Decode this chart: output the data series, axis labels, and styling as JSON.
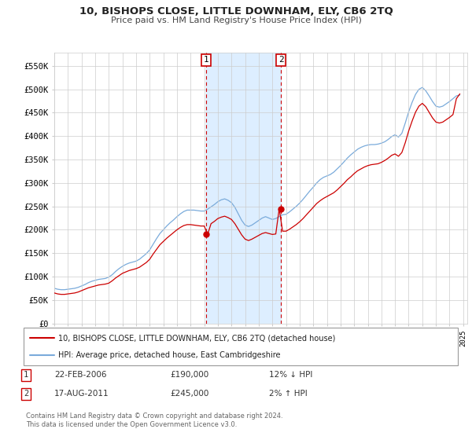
{
  "title": "10, BISHOPS CLOSE, LITTLE DOWNHAM, ELY, CB6 2TQ",
  "subtitle": "Price paid vs. HM Land Registry's House Price Index (HPI)",
  "ylabel_ticks": [
    "£0",
    "£50K",
    "£100K",
    "£150K",
    "£200K",
    "£250K",
    "£300K",
    "£350K",
    "£400K",
    "£450K",
    "£500K",
    "£550K"
  ],
  "ytick_values": [
    0,
    50000,
    100000,
    150000,
    200000,
    250000,
    300000,
    350000,
    400000,
    450000,
    500000,
    550000
  ],
  "ylim": [
    0,
    578000
  ],
  "xlim_start": 1995.0,
  "xlim_end": 2025.3,
  "background_color": "#ffffff",
  "plot_bg_color": "#ffffff",
  "grid_color": "#cccccc",
  "sale1_x": 2006.14,
  "sale1_y": 190000,
  "sale1_label": "1",
  "sale1_date": "22-FEB-2006",
  "sale1_price": "£190,000",
  "sale1_hpi": "12% ↓ HPI",
  "sale2_x": 2011.63,
  "sale2_y": 245000,
  "sale2_label": "2",
  "sale2_date": "17-AUG-2011",
  "sale2_price": "£245,000",
  "sale2_hpi": "2% ↑ HPI",
  "shaded_region_color": "#ddeeff",
  "vline_color": "#cc0000",
  "vline_style": "--",
  "legend_line1": "10, BISHOPS CLOSE, LITTLE DOWNHAM, ELY, CB6 2TQ (detached house)",
  "legend_line2": "HPI: Average price, detached house, East Cambridgeshire",
  "footer": "Contains HM Land Registry data © Crown copyright and database right 2024.\nThis data is licensed under the Open Government Licence v3.0.",
  "hpi_color": "#7aabdb",
  "price_color": "#cc0000",
  "hpi_data_years": [
    1995.0,
    1995.25,
    1995.5,
    1995.75,
    1996.0,
    1996.25,
    1996.5,
    1996.75,
    1997.0,
    1997.25,
    1997.5,
    1997.75,
    1998.0,
    1998.25,
    1998.5,
    1998.75,
    1999.0,
    1999.25,
    1999.5,
    1999.75,
    2000.0,
    2000.25,
    2000.5,
    2000.75,
    2001.0,
    2001.25,
    2001.5,
    2001.75,
    2002.0,
    2002.25,
    2002.5,
    2002.75,
    2003.0,
    2003.25,
    2003.5,
    2003.75,
    2004.0,
    2004.25,
    2004.5,
    2004.75,
    2005.0,
    2005.25,
    2005.5,
    2005.75,
    2006.0,
    2006.25,
    2006.5,
    2006.75,
    2007.0,
    2007.25,
    2007.5,
    2007.75,
    2008.0,
    2008.25,
    2008.5,
    2008.75,
    2009.0,
    2009.25,
    2009.5,
    2009.75,
    2010.0,
    2010.25,
    2010.5,
    2010.75,
    2011.0,
    2011.25,
    2011.5,
    2011.75,
    2012.0,
    2012.25,
    2012.5,
    2012.75,
    2013.0,
    2013.25,
    2013.5,
    2013.75,
    2014.0,
    2014.25,
    2014.5,
    2014.75,
    2015.0,
    2015.25,
    2015.5,
    2015.75,
    2016.0,
    2016.25,
    2016.5,
    2016.75,
    2017.0,
    2017.25,
    2017.5,
    2017.75,
    2018.0,
    2018.25,
    2018.5,
    2018.75,
    2019.0,
    2019.25,
    2019.5,
    2019.75,
    2020.0,
    2020.25,
    2020.5,
    2020.75,
    2021.0,
    2021.25,
    2021.5,
    2021.75,
    2022.0,
    2022.25,
    2022.5,
    2022.75,
    2023.0,
    2023.25,
    2023.5,
    2023.75,
    2024.0,
    2024.25,
    2024.5,
    2024.75
  ],
  "hpi_data_values": [
    75000,
    73000,
    72000,
    72000,
    73000,
    74000,
    75000,
    77000,
    80000,
    83000,
    87000,
    90000,
    92000,
    94000,
    95000,
    96000,
    99000,
    104000,
    111000,
    117000,
    122000,
    126000,
    129000,
    131000,
    133000,
    137000,
    143000,
    149000,
    157000,
    169000,
    181000,
    192000,
    200000,
    208000,
    215000,
    221000,
    228000,
    234000,
    239000,
    242000,
    242000,
    242000,
    241000,
    240000,
    240000,
    244000,
    249000,
    254000,
    260000,
    264000,
    266000,
    263000,
    258000,
    248000,
    234000,
    220000,
    210000,
    207000,
    210000,
    215000,
    220000,
    225000,
    228000,
    225000,
    222000,
    224000,
    228000,
    232000,
    233000,
    238000,
    244000,
    250000,
    257000,
    265000,
    274000,
    283000,
    291000,
    300000,
    307000,
    312000,
    315000,
    318000,
    323000,
    330000,
    337000,
    345000,
    353000,
    360000,
    366000,
    372000,
    376000,
    379000,
    381000,
    382000,
    382000,
    383000,
    385000,
    388000,
    393000,
    399000,
    403000,
    398000,
    406000,
    428000,
    452000,
    472000,
    489000,
    500000,
    504000,
    497000,
    486000,
    474000,
    464000,
    462000,
    464000,
    469000,
    474000,
    480000,
    486000,
    488000
  ],
  "price_data_years": [
    1995.0,
    1995.25,
    1995.5,
    1995.75,
    1996.0,
    1996.25,
    1996.5,
    1996.75,
    1997.0,
    1997.25,
    1997.5,
    1997.75,
    1998.0,
    1998.25,
    1998.5,
    1998.75,
    1999.0,
    1999.25,
    1999.5,
    1999.75,
    2000.0,
    2000.25,
    2000.5,
    2000.75,
    2001.0,
    2001.25,
    2001.5,
    2001.75,
    2002.0,
    2002.25,
    2002.5,
    2002.75,
    2003.0,
    2003.25,
    2003.5,
    2003.75,
    2004.0,
    2004.25,
    2004.5,
    2004.75,
    2005.0,
    2005.25,
    2005.5,
    2005.75,
    2006.0,
    2006.25,
    2006.5,
    2006.75,
    2007.0,
    2007.25,
    2007.5,
    2007.75,
    2008.0,
    2008.25,
    2008.5,
    2008.75,
    2009.0,
    2009.25,
    2009.5,
    2009.75,
    2010.0,
    2010.25,
    2010.5,
    2010.75,
    2011.0,
    2011.25,
    2011.5,
    2011.75,
    2012.0,
    2012.25,
    2012.5,
    2012.75,
    2013.0,
    2013.25,
    2013.5,
    2013.75,
    2014.0,
    2014.25,
    2014.5,
    2014.75,
    2015.0,
    2015.25,
    2015.5,
    2015.75,
    2016.0,
    2016.25,
    2016.5,
    2016.75,
    2017.0,
    2017.25,
    2017.5,
    2017.75,
    2018.0,
    2018.25,
    2018.5,
    2018.75,
    2019.0,
    2019.25,
    2019.5,
    2019.75,
    2020.0,
    2020.25,
    2020.5,
    2020.75,
    2021.0,
    2021.25,
    2021.5,
    2021.75,
    2022.0,
    2022.25,
    2022.5,
    2022.75,
    2023.0,
    2023.25,
    2023.5,
    2023.75,
    2024.0,
    2024.25,
    2024.5,
    2024.75
  ],
  "price_data_values": [
    65000,
    63000,
    62000,
    62000,
    63000,
    64000,
    65000,
    67000,
    70000,
    73000,
    76000,
    78000,
    80000,
    82000,
    83000,
    84000,
    86000,
    91000,
    97000,
    102000,
    107000,
    110000,
    113000,
    115000,
    117000,
    120000,
    125000,
    130000,
    137000,
    148000,
    158000,
    168000,
    175000,
    182000,
    188000,
    194000,
    200000,
    205000,
    209000,
    211000,
    211000,
    210000,
    209000,
    208000,
    208000,
    190000,
    213000,
    218000,
    224000,
    227000,
    229000,
    226000,
    222000,
    213000,
    201000,
    189000,
    180000,
    177000,
    180000,
    184000,
    188000,
    192000,
    194000,
    192000,
    190000,
    191000,
    245000,
    197000,
    197000,
    201000,
    206000,
    211000,
    217000,
    224000,
    232000,
    240000,
    248000,
    256000,
    262000,
    267000,
    271000,
    275000,
    279000,
    285000,
    292000,
    299000,
    307000,
    313000,
    320000,
    326000,
    330000,
    334000,
    337000,
    339000,
    340000,
    341000,
    344000,
    348000,
    353000,
    359000,
    362000,
    357000,
    365000,
    386000,
    411000,
    432000,
    451000,
    464000,
    470000,
    463000,
    451000,
    439000,
    430000,
    428000,
    430000,
    435000,
    440000,
    446000,
    480000,
    490000
  ]
}
